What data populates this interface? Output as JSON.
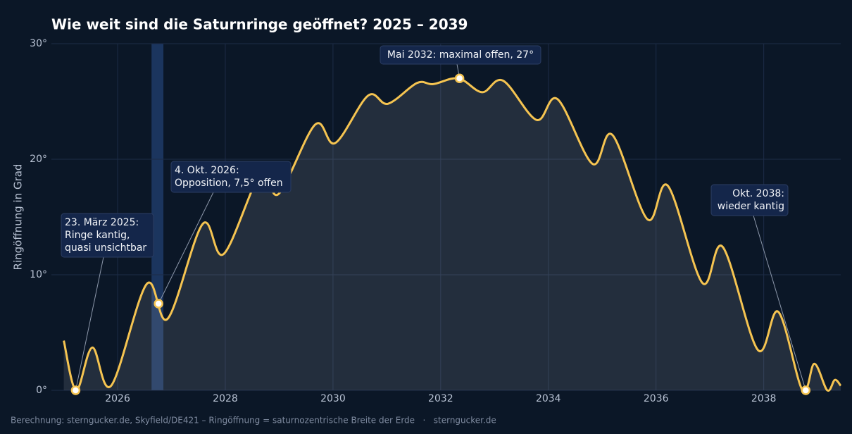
{
  "chart_data": {
    "type": "line",
    "title": "Wie weit sind die Saturnringe geöffnet? 2025 – 2039",
    "y_label": "Ringöffnung in Grad",
    "footer": "Berechnung: sterngucker.de, Skyfield/DE421 – Ringöffnung = saturnozentrische Breite der Erde   ·   sterngucker.de",
    "xlim": [
      2024.77,
      2039.43
    ],
    "ylim": [
      0,
      30
    ],
    "xticks": [
      2026,
      2028,
      2030,
      2032,
      2034,
      2036,
      2038
    ],
    "yticks": [
      {
        "value": 0,
        "label": "0°"
      },
      {
        "value": 10,
        "label": "10°"
      },
      {
        "value": 20,
        "label": "20°"
      },
      {
        "value": 30,
        "label": "30°"
      }
    ],
    "grid": true,
    "highlight": [
      2026.63,
      2026.85
    ],
    "series": [
      {
        "color": "#f5c451",
        "x": [
          2025.0,
          2025.23,
          2025.53,
          2025.88,
          2026.54,
          2026.93,
          2027.58,
          2027.97,
          2028.66,
          2028.99,
          2029.67,
          2030.04,
          2030.65,
          2031.02,
          2031.56,
          2031.86,
          2032.33,
          2032.77,
          2033.16,
          2033.78,
          2034.17,
          2034.82,
          2035.19,
          2035.84,
          2036.22,
          2036.86,
          2037.24,
          2037.89,
          2038.27,
          2038.72,
          2038.94,
          2039.18,
          2039.32,
          2039.43
        ],
        "values": [
          4.3,
          0,
          3.7,
          0.4,
          9.2,
          6.2,
          14.4,
          11.8,
          18.8,
          17.0,
          23.0,
          21.4,
          25.5,
          24.8,
          26.6,
          26.5,
          27.0,
          25.8,
          26.8,
          23.4,
          25.2,
          19.6,
          22.1,
          14.8,
          17.7,
          9.3,
          12.4,
          3.5,
          6.8,
          0,
          2.3,
          0,
          0.9,
          0.4
        ]
      }
    ],
    "annotations": [
      {
        "x": 2025.22,
        "y": 0,
        "text": [
          "23. März 2025:",
          "Ringe kantig,",
          "quasi unsichtbar"
        ]
      },
      {
        "x": 2026.76,
        "y": 7.5,
        "text": [
          "4. Okt. 2026:",
          "Opposition, 7,5° offen"
        ]
      },
      {
        "x": 2032.35,
        "y": 27,
        "text": [
          "Mai 2032: maximal offen, 27°"
        ]
      },
      {
        "x": 2038.78,
        "y": 0,
        "text": [
          "Okt. 2038:",
          "wieder kantig"
        ]
      }
    ]
  }
}
